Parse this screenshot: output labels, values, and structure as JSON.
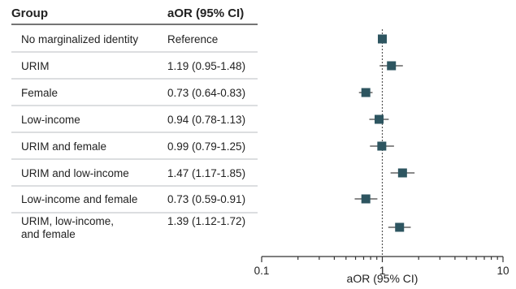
{
  "table": {
    "col_group_header": "Group",
    "col_aor_header": "aOR (95% CI)"
  },
  "chart_data": {
    "type": "forest",
    "xlabel": "aOR (95% CI)",
    "x_scale": "log",
    "xlim": [
      0.1,
      10
    ],
    "x_ticks": [
      0.1,
      1,
      10
    ],
    "x_tick_labels": [
      "0.1",
      "1",
      "10"
    ],
    "reference_line": 1,
    "rows": [
      {
        "group": [
          "No marginalized identity"
        ],
        "aor_text": "Reference",
        "aor": 1.0,
        "lower": null,
        "upper": null
      },
      {
        "group": [
          "URIM"
        ],
        "aor_text": "1.19 (0.95-1.48)",
        "aor": 1.19,
        "lower": 0.95,
        "upper": 1.48
      },
      {
        "group": [
          "Female"
        ],
        "aor_text": "0.73 (0.64-0.83)",
        "aor": 0.73,
        "lower": 0.64,
        "upper": 0.83
      },
      {
        "group": [
          "Low-income"
        ],
        "aor_text": "0.94 (0.78-1.13)",
        "aor": 0.94,
        "lower": 0.78,
        "upper": 1.13
      },
      {
        "group": [
          "URIM and female"
        ],
        "aor_text": "0.99 (0.79-1.25)",
        "aor": 0.99,
        "lower": 0.79,
        "upper": 1.25
      },
      {
        "group": [
          "URIM and low-income"
        ],
        "aor_text": "1.47 (1.17-1.85)",
        "aor": 1.47,
        "lower": 1.17,
        "upper": 1.85
      },
      {
        "group": [
          "Low-income and female"
        ],
        "aor_text": "0.73 (0.59-0.91)",
        "aor": 0.73,
        "lower": 0.59,
        "upper": 0.91
      },
      {
        "group": [
          "URIM, low-income,",
          "and female"
        ],
        "aor_text": "1.39 (1.12-1.72)",
        "aor": 1.39,
        "lower": 1.12,
        "upper": 1.72
      }
    ],
    "marker_color": "#2d5560"
  }
}
